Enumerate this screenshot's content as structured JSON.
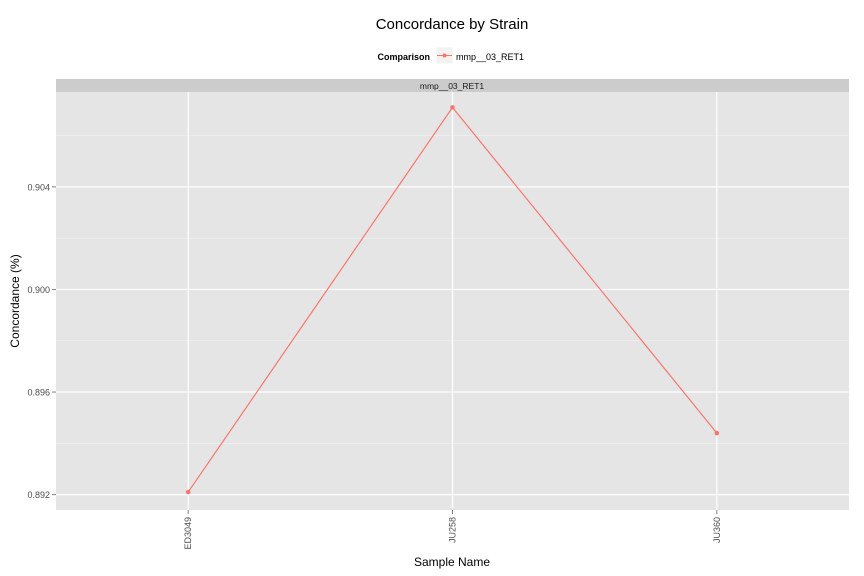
{
  "chart_data": {
    "type": "line",
    "title": "Concordance by Strain",
    "xlabel": "Sample Name",
    "ylabel": "Concordance (%)",
    "legend": {
      "title": "Comparison",
      "placement": "top",
      "entries": [
        "mmp__03_RET1"
      ]
    },
    "facet_label": "mmp__03_RET1",
    "categories": [
      "ED3049",
      "JU258",
      "JU360"
    ],
    "series": [
      {
        "name": "mmp__03_RET1",
        "values": [
          0.8921,
          0.9071,
          0.8944
        ],
        "color": "#F8766D"
      }
    ],
    "y_ticks": [
      "0.892",
      "0.896",
      "0.900",
      "0.904"
    ],
    "y_tick_values": [
      0.892,
      0.896,
      0.9,
      0.904
    ],
    "ylim": [
      0.8914,
      0.9077
    ],
    "grid": true,
    "panel_background": "#e5e5e5",
    "strip_background": "#cccccc"
  }
}
